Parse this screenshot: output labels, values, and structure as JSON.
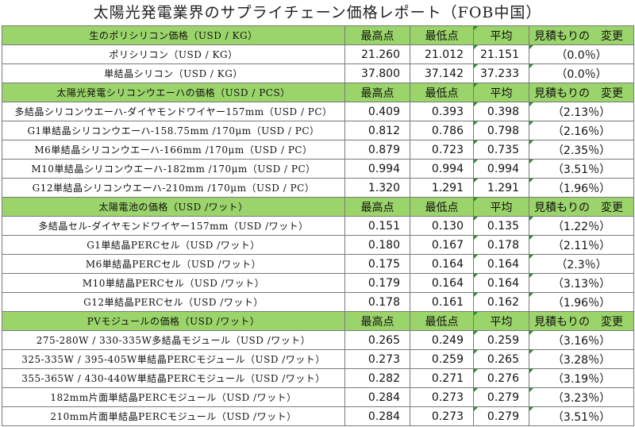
{
  "title": "太陽光発電業界のサプライチェーン価格レポート（FOB中国）",
  "columns": {
    "high": "最高点",
    "low": "最低点",
    "avg": "平均",
    "change": "見積もりの　変更"
  },
  "sections": [
    {
      "header": "生のポリシリコン価格（USD / KG）",
      "rows": [
        {
          "label": "ポリシリコン（USD / KG）",
          "high": "21.260",
          "low": "21.012",
          "avg": "21.151",
          "change": "（0.0％）"
        },
        {
          "label": "単結晶シリコン（USD / KG）",
          "high": "37.800",
          "low": "37.142",
          "avg": "37.233",
          "change": "（0.0％）"
        }
      ]
    },
    {
      "header": "太陽光発電シリコンウエーハの価格（USD / PCS）",
      "rows": [
        {
          "label": "多結晶シリコンウエーハ-ダイヤモンドワイヤー157mm（USD / PC）",
          "high": "0.409",
          "low": "0.393",
          "avg": "0.398",
          "change": "（2.13％）"
        },
        {
          "label": "G1単結晶シリコンウエーハ-158.75mm /170μm（USD / PC）",
          "high": "0.812",
          "low": "0.786",
          "avg": "0.798",
          "change": "（2.16％）"
        },
        {
          "label": "M6単結晶シリコンウエーハ-166mm /170μm（USD / PC）",
          "high": "0.879",
          "low": "0.723",
          "avg": "0.735",
          "change": "（2.35％）"
        },
        {
          "label": "M10単結晶シリコンウエーハ-182mm /170μm（USD / PC）",
          "high": "0.994",
          "low": "0.994",
          "avg": "0.994",
          "change": "（3.51％）"
        },
        {
          "label": "G12単結晶シリコンウエーハ-210mm /170μm（USD / PC）",
          "high": "1.320",
          "low": "1.291",
          "avg": "1.291",
          "change": "（1.96％）"
        }
      ]
    },
    {
      "header": "太陽電池の価格（USD /ワット）",
      "rows": [
        {
          "label": "多結晶セル-ダイヤモンドワイヤー157mm（USD /ワット）",
          "high": "0.151",
          "low": "0.130",
          "avg": "0.135",
          "change": "（1.22％）"
        },
        {
          "label": "G1単結晶PERCセル（USD /ワット）",
          "high": "0.180",
          "low": "0.167",
          "avg": "0.178",
          "change": "（2.11％）"
        },
        {
          "label": "M6単結晶PERCセル（USD /ワット）",
          "high": "0.175",
          "low": "0.164",
          "avg": "0.164",
          "change": "（2.3％）"
        },
        {
          "label": "M10単結晶PERCセル（USD /ワット）",
          "high": "0.179",
          "low": "0.164",
          "avg": "0.164",
          "change": "（3.13％）"
        },
        {
          "label": "G12単結晶PERCセル（USD /ワット）",
          "high": "0.178",
          "low": "0.161",
          "avg": "0.162",
          "change": "（1.96％）"
        }
      ]
    },
    {
      "header": "PVモジュールの価格（USD /ワット）",
      "rows": [
        {
          "label": "275-280W / 330-335W多結晶モジュール（USD /ワット）",
          "high": "0.265",
          "low": "0.249",
          "avg": "0.259",
          "change": "（3.16％）"
        },
        {
          "label": "325-335W / 395-405W単結晶PERCモジュール（USD /ワット）",
          "high": "0.273",
          "low": "0.259",
          "avg": "0.265",
          "change": "（3.28％）"
        },
        {
          "label": "355-365W / 430-440W単結晶PERCモジュール（USD /ワット）",
          "high": "0.282",
          "low": "0.271",
          "avg": "0.276",
          "change": "（3.19％）"
        },
        {
          "label": "182mm片面単結晶PERCモジュール（USD /ワット）",
          "high": "0.284",
          "low": "0.273",
          "avg": "0.279",
          "change": "（3.23％）"
        },
        {
          "label": "210mm片面単結晶PERCモジュール（USD /ワット）",
          "high": "0.284",
          "low": "0.273",
          "avg": "0.279",
          "change": "（3.51％）"
        }
      ]
    }
  ],
  "colors": {
    "section_header_bg": "#9bd46a",
    "grid": "#7a7a7a",
    "corner_marker": "#2e8b2e"
  }
}
